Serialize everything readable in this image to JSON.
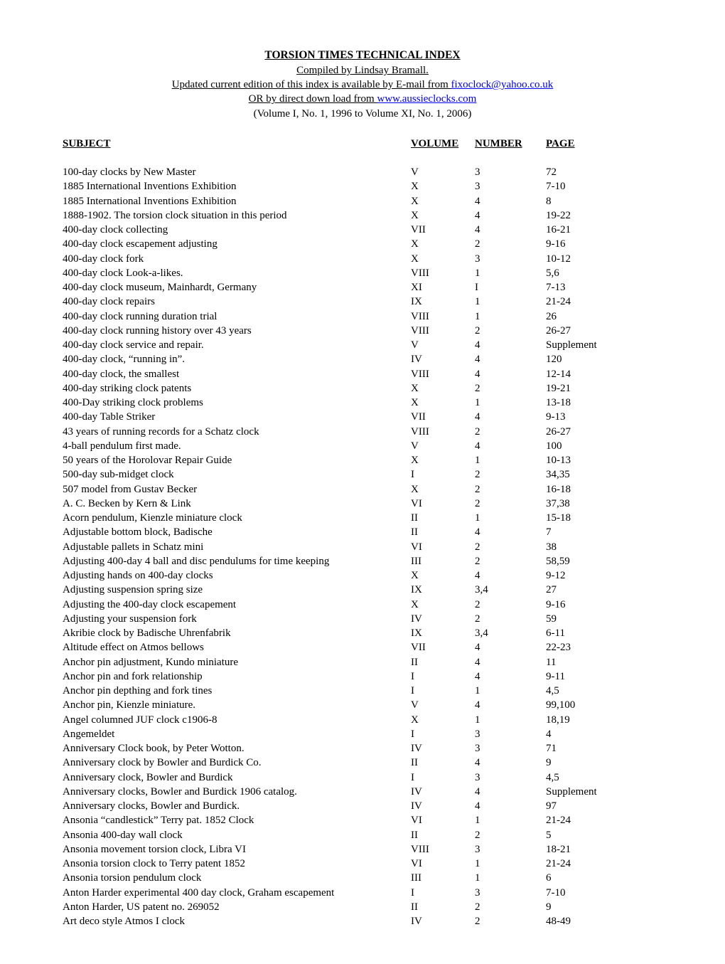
{
  "header": {
    "title": "TORSION TIMES TECHNICAL INDEX",
    "subtitle": "Compiled by Lindsay Bramall.",
    "line3_prefix": "Updated current edition of this index is available by E-mail from ",
    "line3_link": "fixoclock@yahoo.co.uk",
    "line4_prefix": "OR by direct down load from ",
    "line4_link": "www.aussieclocks.com",
    "line5": "(Volume I, No. 1, 1996 to Volume XI, No. 1, 2006)"
  },
  "columns": {
    "subject": "SUBJECT",
    "volume": "VOLUME",
    "number": "NUMBER",
    "page": "PAGE"
  },
  "rows": [
    {
      "s": "100-day clocks by New Master",
      "v": "V",
      "n": "3",
      "p": "72"
    },
    {
      "s": "1885 International Inventions Exhibition",
      "v": "X",
      "n": "3",
      "p": "7-10"
    },
    {
      "s": "1885 International Inventions Exhibition",
      "v": "X",
      "n": "4",
      "p": "8"
    },
    {
      "s": "1888-1902. The torsion clock situation in this period",
      "v": "X",
      "n": "4",
      "p": "19-22"
    },
    {
      "s": "400-day clock collecting",
      "v": "VII",
      "n": "4",
      "p": "16-21"
    },
    {
      "s": "400-day clock escapement adjusting",
      "v": "X",
      "n": "2",
      "p": "9-16"
    },
    {
      "s": "400-day clock fork",
      "v": "X",
      "n": "3",
      "p": "10-12"
    },
    {
      "s": "400-day clock Look-a-likes.",
      "v": "VIII",
      "n": "1",
      "p": "5,6"
    },
    {
      "s": "400-day clock museum, Mainhardt, Germany",
      "v": "XI",
      "n": "I",
      "p": "7-13"
    },
    {
      "s": "400-day clock repairs",
      "v": "IX",
      "n": "1",
      "p": "21-24"
    },
    {
      "s": "400-day clock running duration trial",
      "v": "VIII",
      "n": "1",
      "p": "26"
    },
    {
      "s": "400-day clock running history over 43 years",
      "v": "VIII",
      "n": "2",
      "p": "26-27"
    },
    {
      "s": "400-day clock service and repair.",
      "v": "V",
      "n": "4",
      "p": "Supplement"
    },
    {
      "s": "400-day clock, “running in”.",
      "v": "IV",
      "n": "4",
      "p": "120"
    },
    {
      "s": "400-day clock, the smallest",
      "v": "VIII",
      "n": "4",
      "p": "12-14"
    },
    {
      "s": "400-day striking clock patents",
      "v": "X",
      "n": "2",
      "p": "19-21"
    },
    {
      "s": "400-Day striking clock problems",
      "v": "X",
      "n": "1",
      "p": "13-18"
    },
    {
      "s": "400-day Table Striker",
      "v": "VII",
      "n": "4",
      "p": "9-13"
    },
    {
      "s": "43 years of running records for a Schatz clock",
      "v": "VIII",
      "n": "2",
      "p": "26-27"
    },
    {
      "s": "4-ball pendulum first made.",
      "v": "V",
      "n": "4",
      "p": "100"
    },
    {
      "s": "50 years of the Horolovar Repair Guide",
      "v": "X",
      "n": "1",
      "p": "10-13"
    },
    {
      "s": "500-day sub-midget clock",
      "v": "I",
      "n": "2",
      "p": "34,35"
    },
    {
      "s": "507 model from Gustav Becker",
      "v": "X",
      "n": "2",
      "p": "16-18"
    },
    {
      "s": "A. C. Becken by Kern & Link",
      "v": "VI",
      "n": "2",
      "p": "37,38"
    },
    {
      "s": "Acorn pendulum, Kienzle miniature clock",
      "v": "II",
      "n": "1",
      "p": "15-18"
    },
    {
      "s": "Adjustable bottom block, Badische",
      "v": "II",
      "n": "4",
      "p": "7"
    },
    {
      "s": "Adjustable pallets in Schatz mini",
      "v": "VI",
      "n": "2",
      "p": "38"
    },
    {
      "s": "Adjusting 400-day 4 ball and disc pendulums for time keeping",
      "v": "III",
      "n": "2",
      "p": "58,59"
    },
    {
      "s": "Adjusting hands on 400-day clocks",
      "v": "X",
      "n": "4",
      "p": "9-12"
    },
    {
      "s": "Adjusting suspension spring size",
      "v": "IX",
      "n": "3,4",
      "p": "27"
    },
    {
      "s": "Adjusting the 400-day clock escapement",
      "v": "X",
      "n": "2",
      "p": "9-16"
    },
    {
      "s": "Adjusting your suspension fork",
      "v": "IV",
      "n": "2",
      "p": "59"
    },
    {
      "s": "Akribie clock by Badische Uhrenfabrik",
      "v": "IX",
      "n": "3,4",
      "p": "6-11"
    },
    {
      "s": "Altitude effect on Atmos bellows",
      "v": "VII",
      "n": "4",
      "p": "22-23"
    },
    {
      "s": "Anchor pin adjustment, Kundo miniature",
      "v": "II",
      "n": "4",
      "p": "11"
    },
    {
      "s": "Anchor pin and fork relationship",
      "v": "I",
      "n": "4",
      "p": "9-11"
    },
    {
      "s": "Anchor pin depthing and fork tines",
      "v": "I",
      "n": "1",
      "p": "4,5"
    },
    {
      "s": "Anchor pin, Kienzle miniature.",
      "v": "V",
      "n": "4",
      "p": "99,100"
    },
    {
      "s": "Angel columned JUF clock c1906-8",
      "v": "X",
      "n": "1",
      "p": "18,19"
    },
    {
      "s": "Angemeldet",
      "v": "I",
      "n": "3",
      "p": "4"
    },
    {
      "s": "Anniversary Clock book, by Peter Wotton.",
      "v": "IV",
      "n": "3",
      "p": "71"
    },
    {
      "s": "Anniversary clock by Bowler and Burdick Co.",
      "v": "II",
      "n": "4",
      "p": "9"
    },
    {
      "s": "Anniversary clock, Bowler and Burdick",
      "v": "I",
      "n": "3",
      "p": "4,5"
    },
    {
      "s": "Anniversary clocks, Bowler and Burdick 1906 catalog.",
      "v": "IV",
      "n": "4",
      "p": "Supplement"
    },
    {
      "s": "Anniversary clocks, Bowler and Burdick.",
      "v": "IV",
      "n": "4",
      "p": "97"
    },
    {
      "s": "Ansonia “candlestick” Terry pat. 1852 Clock",
      "v": "VI",
      "n": "1",
      "p": "21-24"
    },
    {
      "s": "Ansonia 400-day wall clock",
      "v": "II",
      "n": "2",
      "p": "5"
    },
    {
      "s": "Ansonia movement torsion clock, Libra VI",
      "v": "VIII",
      "n": "3",
      "p": "18-21"
    },
    {
      "s": "Ansonia torsion clock to Terry patent 1852",
      "v": "VI",
      "n": "1",
      "p": "21-24"
    },
    {
      "s": "Ansonia torsion pendulum clock",
      "v": "III",
      "n": "1",
      "p": "6"
    },
    {
      "s": "Anton Harder experimental 400 day clock, Graham escapement",
      "v": "I",
      "n": "3",
      "p": "7-10"
    },
    {
      "s": "Anton Harder, US patent no. 269052",
      "v": "II",
      "n": "2",
      "p": "9"
    },
    {
      "s": "Art deco style Atmos I clock",
      "v": "IV",
      "n": "2",
      "p": "48-49"
    }
  ]
}
